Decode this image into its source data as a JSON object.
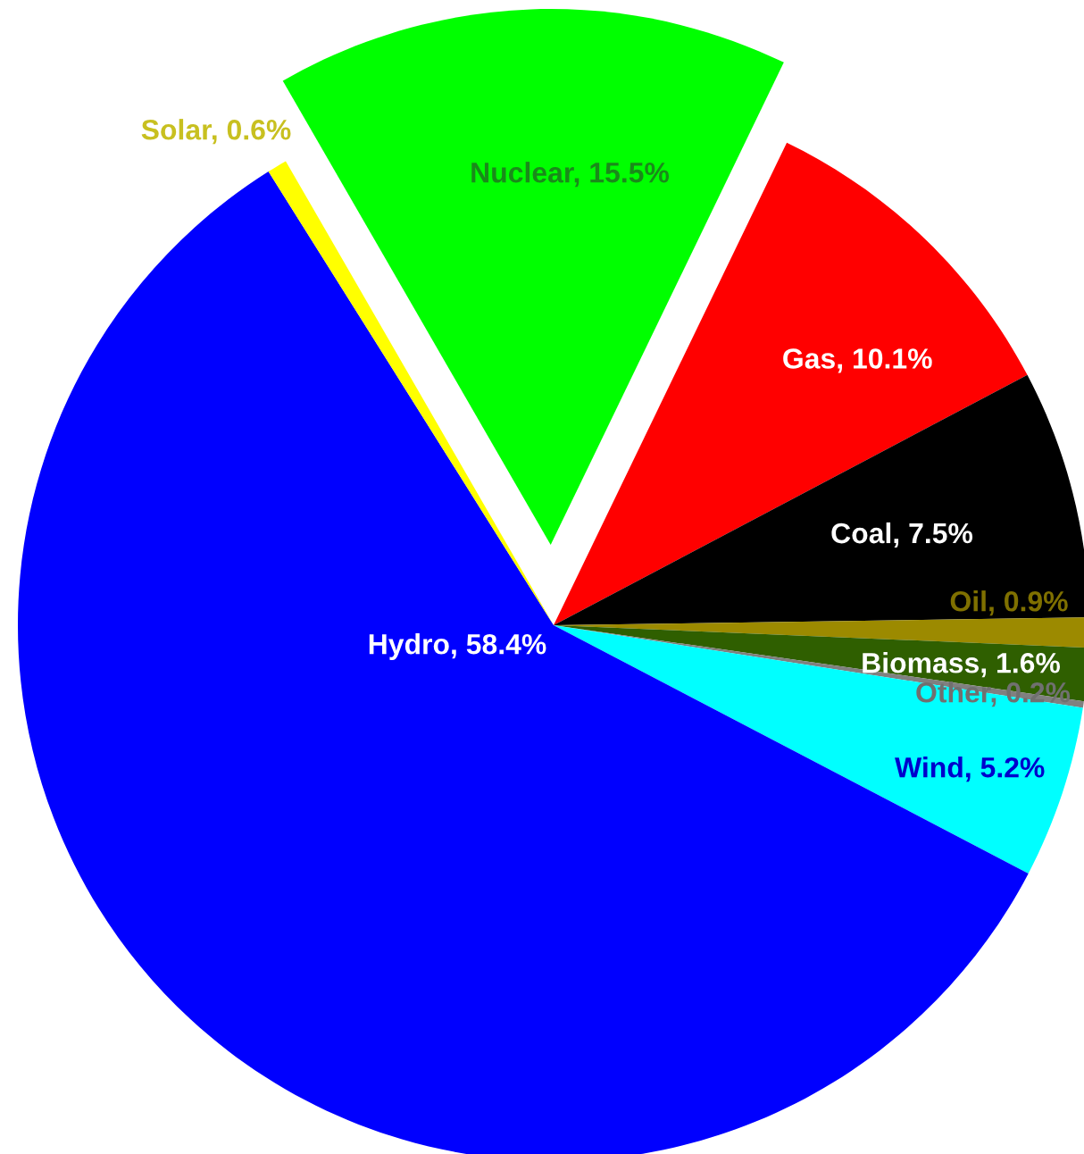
{
  "chart_data": {
    "type": "pie",
    "categories": [
      "Nuclear",
      "Gas",
      "Coal",
      "Oil",
      "Biomass",
      "Other",
      "Wind",
      "Hydro",
      "Solar"
    ],
    "values": [
      15.5,
      10.1,
      7.5,
      0.9,
      1.6,
      0.2,
      5.2,
      58.4,
      0.6
    ],
    "colors": [
      "#00ff00",
      "#ff0000",
      "#000000",
      "#9c8a00",
      "#2f5f00",
      "#808080",
      "#00ffff",
      "#0000ff",
      "#ffff00"
    ],
    "value_labels": [
      "15.5%",
      "10.1%",
      "7.5%",
      "0.9%",
      "1.6%",
      "0.2%",
      "5.2%",
      "58.4%",
      "0.6%"
    ],
    "legend": false
  }
}
